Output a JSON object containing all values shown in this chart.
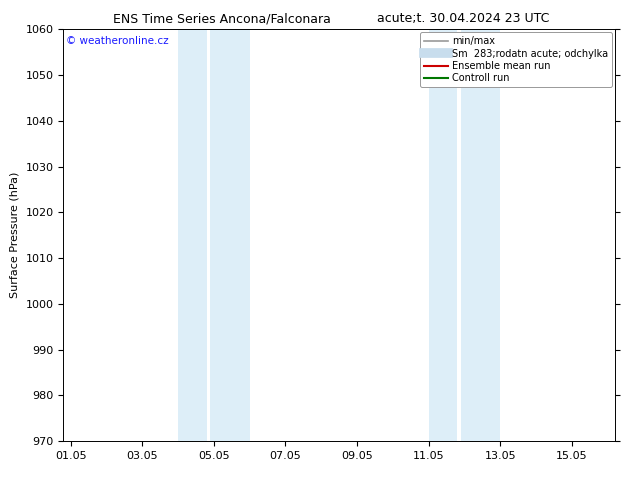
{
  "title_left": "ENS Time Series Ancona/Falconara",
  "title_right": "acute;t. 30.04.2024 23 UTC",
  "ylabel": "Surface Pressure (hPa)",
  "ylim": [
    970,
    1060
  ],
  "yticks": [
    970,
    980,
    990,
    1000,
    1010,
    1020,
    1030,
    1040,
    1050,
    1060
  ],
  "xtick_labels": [
    "01.05",
    "03.05",
    "05.05",
    "07.05",
    "09.05",
    "11.05",
    "13.05",
    "15.05"
  ],
  "xtick_positions": [
    0,
    2,
    4,
    6,
    8,
    10,
    12,
    14
  ],
  "xlim": [
    -0.2,
    15.2
  ],
  "shade_bands": [
    {
      "x_start": 3.0,
      "x_end": 3.8,
      "color": "#ddeef8"
    },
    {
      "x_start": 3.9,
      "x_end": 5.0,
      "color": "#ddeef8"
    },
    {
      "x_start": 10.0,
      "x_end": 10.8,
      "color": "#ddeef8"
    },
    {
      "x_start": 10.9,
      "x_end": 12.0,
      "color": "#ddeef8"
    }
  ],
  "watermark_text": "© weatheronline.cz",
  "watermark_color": "#1a1aff",
  "legend_entries": [
    {
      "label": "min/max",
      "color": "#999999",
      "lw": 1.2
    },
    {
      "label": "Sm  283;rodatn acute; odchylka",
      "color": "#c8dded",
      "lw": 7
    },
    {
      "label": "Ensemble mean run",
      "color": "#cc0000",
      "lw": 1.5
    },
    {
      "label": "Controll run",
      "color": "#007700",
      "lw": 1.5
    }
  ],
  "bg_color": "#ffffff",
  "plot_bg_color": "#ffffff",
  "border_color": "#000000",
  "title_fontsize": 9,
  "ylabel_fontsize": 8,
  "tick_fontsize": 8,
  "legend_fontsize": 7
}
